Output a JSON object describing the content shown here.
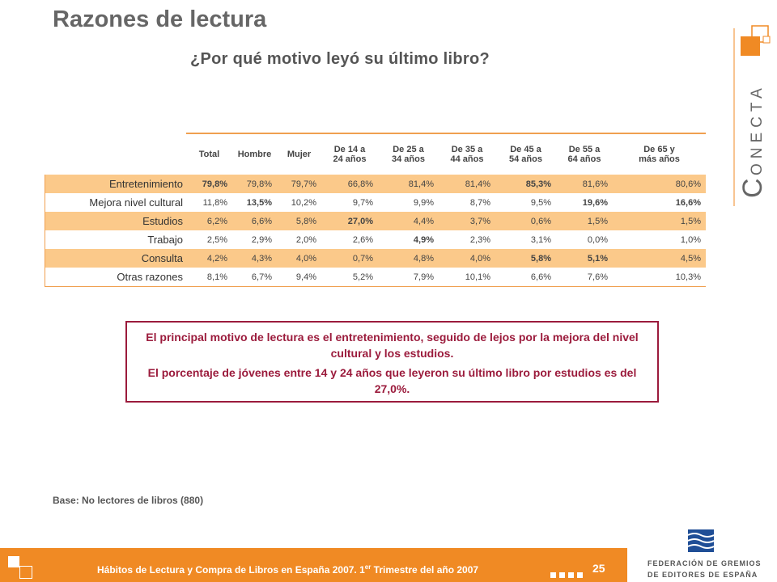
{
  "header": {
    "title": "Razones de lectura",
    "subtitle": "¿Por qué motivo leyó su último libro?"
  },
  "table": {
    "columns": [
      "Total",
      "Hombre",
      "Mujer",
      "De 14 a\n24 años",
      "De 25 a\n34 años",
      "De 35 a\n44 años",
      "De 45 a\n54 años",
      "De 55 a\n64 años",
      "De 65 y\nmás años"
    ],
    "rows": [
      {
        "label": "Entretenimiento",
        "cells": [
          "79,8%",
          "79,8%",
          "79,7%",
          "66,8%",
          "81,4%",
          "81,4%",
          "85,3%",
          "81,6%",
          "80,6%"
        ],
        "bold": [
          true,
          false,
          false,
          false,
          false,
          false,
          true,
          false,
          false
        ]
      },
      {
        "label": "Mejora nivel cultural",
        "cells": [
          "11,8%",
          "13,5%",
          "10,2%",
          "9,7%",
          "9,9%",
          "8,7%",
          "9,5%",
          "19,6%",
          "16,6%"
        ],
        "bold": [
          false,
          true,
          false,
          false,
          false,
          false,
          false,
          true,
          true
        ]
      },
      {
        "label": "Estudios",
        "cells": [
          "6,2%",
          "6,6%",
          "5,8%",
          "27,0%",
          "4,4%",
          "3,7%",
          "0,6%",
          "1,5%",
          "1,5%"
        ],
        "bold": [
          false,
          false,
          false,
          true,
          false,
          false,
          false,
          false,
          false
        ]
      },
      {
        "label": "Trabajo",
        "cells": [
          "2,5%",
          "2,9%",
          "2,0%",
          "2,6%",
          "4,9%",
          "2,3%",
          "3,1%",
          "0,0%",
          "1,0%"
        ],
        "bold": [
          false,
          false,
          false,
          false,
          true,
          false,
          false,
          false,
          false
        ]
      },
      {
        "label": "Consulta",
        "cells": [
          "4,2%",
          "4,3%",
          "4,0%",
          "0,7%",
          "4,8%",
          "4,0%",
          "5,8%",
          "5,1%",
          "4,5%"
        ],
        "bold": [
          false,
          false,
          false,
          false,
          false,
          false,
          true,
          true,
          false
        ]
      },
      {
        "label": "Otras razones",
        "cells": [
          "8,1%",
          "6,7%",
          "9,4%",
          "5,2%",
          "7,9%",
          "10,1%",
          "6,6%",
          "7,6%",
          "10,3%"
        ],
        "bold": [
          false,
          false,
          false,
          false,
          false,
          false,
          false,
          false,
          false
        ]
      }
    ]
  },
  "callout": {
    "paragraphs": [
      "El principal motivo de lectura es el entretenimiento, seguido de lejos por la mejora del nivel cultural y los estudios.",
      "El porcentaje de jóvenes entre 14 y 24 años que leyeron su último libro por estudios es del 27,0%."
    ]
  },
  "base_note": "Base: No lectores de libros (880)",
  "footer": {
    "title_start": "Hábitos de Lectura y Compra de Libros en España 2007. 1",
    "title_sup": "er",
    "title_end": " Trimestre del año 2007",
    "page": "25"
  },
  "logos": {
    "conecta_initial": "C",
    "conecta_rest": "ONECTA",
    "federation_line1": "FEDERACIÓN DE GREMIOS",
    "federation_line2": "DE EDITORES DE ESPAÑA"
  }
}
